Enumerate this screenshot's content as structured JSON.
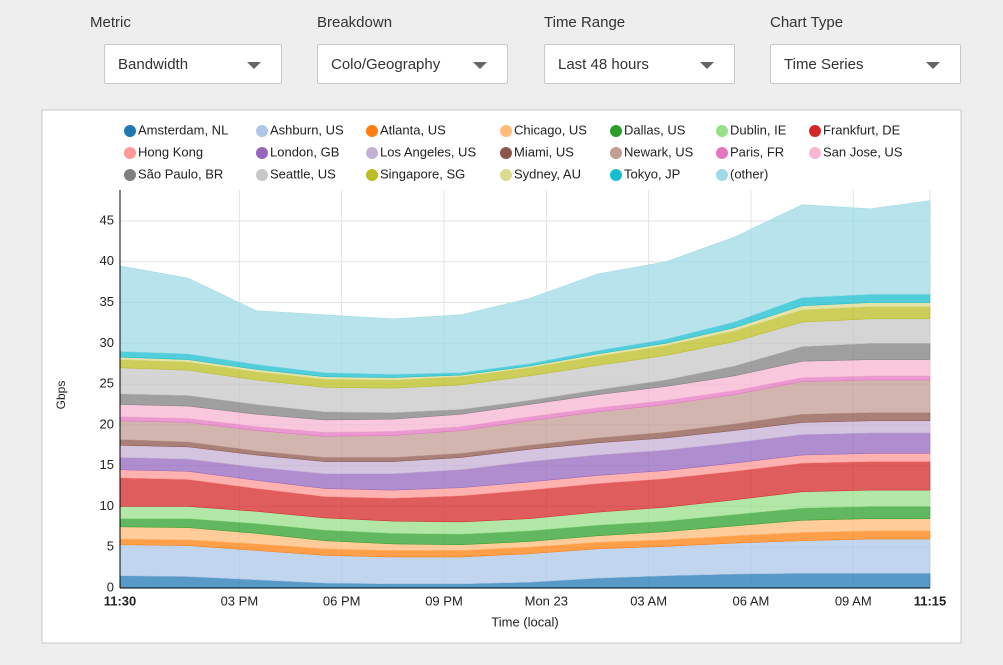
{
  "controls": [
    {
      "label": "Metric",
      "value": "Bandwidth"
    },
    {
      "label": "Breakdown",
      "value": "Colo/Geography"
    },
    {
      "label": "Time Range",
      "value": "Last 48 hours"
    },
    {
      "label": "Chart Type",
      "value": "Time Series"
    }
  ],
  "chart_data": {
    "type": "stacked_area",
    "ylabel": "Gbps",
    "xlabel": "Time (local)",
    "x": [
      0,
      2,
      4,
      6,
      8,
      10,
      12,
      14,
      16,
      18,
      20,
      22,
      23.75
    ],
    "xlim": [
      0,
      23.75
    ],
    "xticks": [
      {
        "value": 0,
        "label": "11:30"
      },
      {
        "value": 3.5,
        "label": "03 PM"
      },
      {
        "value": 6.5,
        "label": "06 PM"
      },
      {
        "value": 9.5,
        "label": "09 PM"
      },
      {
        "value": 12.5,
        "label": "Mon 23"
      },
      {
        "value": 15.5,
        "label": "03 AM"
      },
      {
        "value": 18.5,
        "label": "06 AM"
      },
      {
        "value": 21.5,
        "label": "09 AM"
      },
      {
        "value": 23.75,
        "label": "11:15"
      }
    ],
    "ylim": [
      0,
      48.8
    ],
    "yticks": [
      0,
      5,
      10,
      15,
      20,
      25,
      30,
      35,
      40,
      45
    ],
    "grid": true,
    "series": [
      {
        "name": "Amsterdam, NL",
        "color": "#1f77b4",
        "values": [
          1.5,
          1.4,
          1.0,
          0.6,
          0.5,
          0.5,
          0.7,
          1.2,
          1.5,
          1.7,
          1.8,
          1.8,
          1.8
        ]
      },
      {
        "name": "Ashburn, US",
        "color": "#aec7e8",
        "values": [
          3.8,
          3.8,
          3.6,
          3.4,
          3.3,
          3.3,
          3.5,
          3.6,
          3.6,
          3.8,
          4.0,
          4.2,
          4.2
        ]
      },
      {
        "name": "Atlanta, US",
        "color": "#ff7f0e",
        "values": [
          0.7,
          0.7,
          0.8,
          0.8,
          0.8,
          0.8,
          0.8,
          0.8,
          0.8,
          0.9,
          1.0,
          1.0,
          1.0
        ]
      },
      {
        "name": "Chicago, US",
        "color": "#ffbb78",
        "values": [
          1.5,
          1.5,
          1.3,
          1.0,
          0.8,
          0.7,
          0.7,
          0.8,
          1.0,
          1.2,
          1.5,
          1.5,
          1.5
        ]
      },
      {
        "name": "Dallas, US",
        "color": "#2ca02c",
        "values": [
          1.0,
          1.1,
          1.2,
          1.3,
          1.3,
          1.3,
          1.3,
          1.3,
          1.3,
          1.4,
          1.5,
          1.5,
          1.5
        ]
      },
      {
        "name": "Dublin, IE",
        "color": "#98df8a",
        "values": [
          1.5,
          1.5,
          1.5,
          1.5,
          1.5,
          1.5,
          1.5,
          1.6,
          1.7,
          1.8,
          2.0,
          2.0,
          2.0
        ]
      },
      {
        "name": "Frankfurt, DE",
        "color": "#d62728",
        "values": [
          3.5,
          3.3,
          2.8,
          2.6,
          2.8,
          3.2,
          3.5,
          3.5,
          3.5,
          3.5,
          3.5,
          3.5,
          3.5
        ]
      },
      {
        "name": "Hong Kong",
        "color": "#ff9896",
        "values": [
          1.0,
          1.0,
          1.0,
          1.0,
          1.0,
          1.0,
          1.0,
          1.0,
          1.0,
          1.0,
          1.0,
          1.0,
          1.0
        ]
      },
      {
        "name": "London, GB",
        "color": "#9467bd",
        "values": [
          1.5,
          1.5,
          1.6,
          1.8,
          2.0,
          2.2,
          2.5,
          2.5,
          2.5,
          2.5,
          2.5,
          2.5,
          2.5
        ]
      },
      {
        "name": "Los Angeles, US",
        "color": "#c5b0d5",
        "values": [
          1.5,
          1.5,
          1.5,
          1.5,
          1.5,
          1.5,
          1.5,
          1.5,
          1.5,
          1.5,
          1.5,
          1.5,
          1.5
        ]
      },
      {
        "name": "Miami, US",
        "color": "#8c564b",
        "values": [
          0.7,
          0.6,
          0.5,
          0.5,
          0.5,
          0.5,
          0.5,
          0.6,
          0.7,
          0.8,
          1.0,
          1.0,
          1.0
        ]
      },
      {
        "name": "Newark, US",
        "color": "#c49c94",
        "values": [
          2.3,
          2.4,
          2.5,
          2.6,
          2.7,
          2.8,
          3.0,
          3.2,
          3.4,
          3.6,
          4.0,
          4.0,
          4.0
        ]
      },
      {
        "name": "Paris, FR",
        "color": "#e377c2",
        "values": [
          0.5,
          0.5,
          0.5,
          0.5,
          0.5,
          0.5,
          0.5,
          0.5,
          0.5,
          0.5,
          0.5,
          0.5,
          0.5
        ]
      },
      {
        "name": "San Jose, US",
        "color": "#f7b6d2",
        "values": [
          1.5,
          1.5,
          1.5,
          1.5,
          1.5,
          1.5,
          1.5,
          1.6,
          1.7,
          1.8,
          2.0,
          2.0,
          2.0
        ]
      },
      {
        "name": "São Paulo, BR",
        "color": "#7f7f7f",
        "values": [
          1.3,
          1.3,
          1.2,
          1.0,
          0.8,
          0.6,
          0.5,
          0.6,
          0.8,
          1.2,
          1.8,
          2.0,
          2.0
        ]
      },
      {
        "name": "Seattle, US",
        "color": "#c7c7c7",
        "values": [
          3.2,
          3.1,
          3.0,
          3.0,
          3.0,
          3.0,
          3.0,
          3.0,
          3.0,
          3.0,
          3.0,
          3.0,
          3.0
        ]
      },
      {
        "name": "Singapore, SG",
        "color": "#bcbd22",
        "values": [
          1.0,
          1.0,
          1.0,
          1.0,
          1.0,
          1.0,
          1.0,
          1.1,
          1.2,
          1.3,
          1.5,
          1.5,
          1.5
        ]
      },
      {
        "name": "Sydney, AU",
        "color": "#dbdb8d",
        "values": [
          0.3,
          0.3,
          0.3,
          0.3,
          0.3,
          0.2,
          0.2,
          0.3,
          0.3,
          0.4,
          0.5,
          0.5,
          0.5
        ]
      },
      {
        "name": "Tokyo, JP",
        "color": "#17becf",
        "values": [
          0.7,
          0.7,
          0.6,
          0.5,
          0.4,
          0.3,
          0.3,
          0.4,
          0.5,
          0.7,
          1.0,
          1.0,
          1.0
        ]
      },
      {
        "name": "(other)",
        "color": "#9edae5",
        "values": [
          10.5,
          9.3,
          6.6,
          7.1,
          6.8,
          7.1,
          8.0,
          9.4,
          9.5,
          10.4,
          11.4,
          10.5,
          11.5
        ]
      }
    ]
  }
}
